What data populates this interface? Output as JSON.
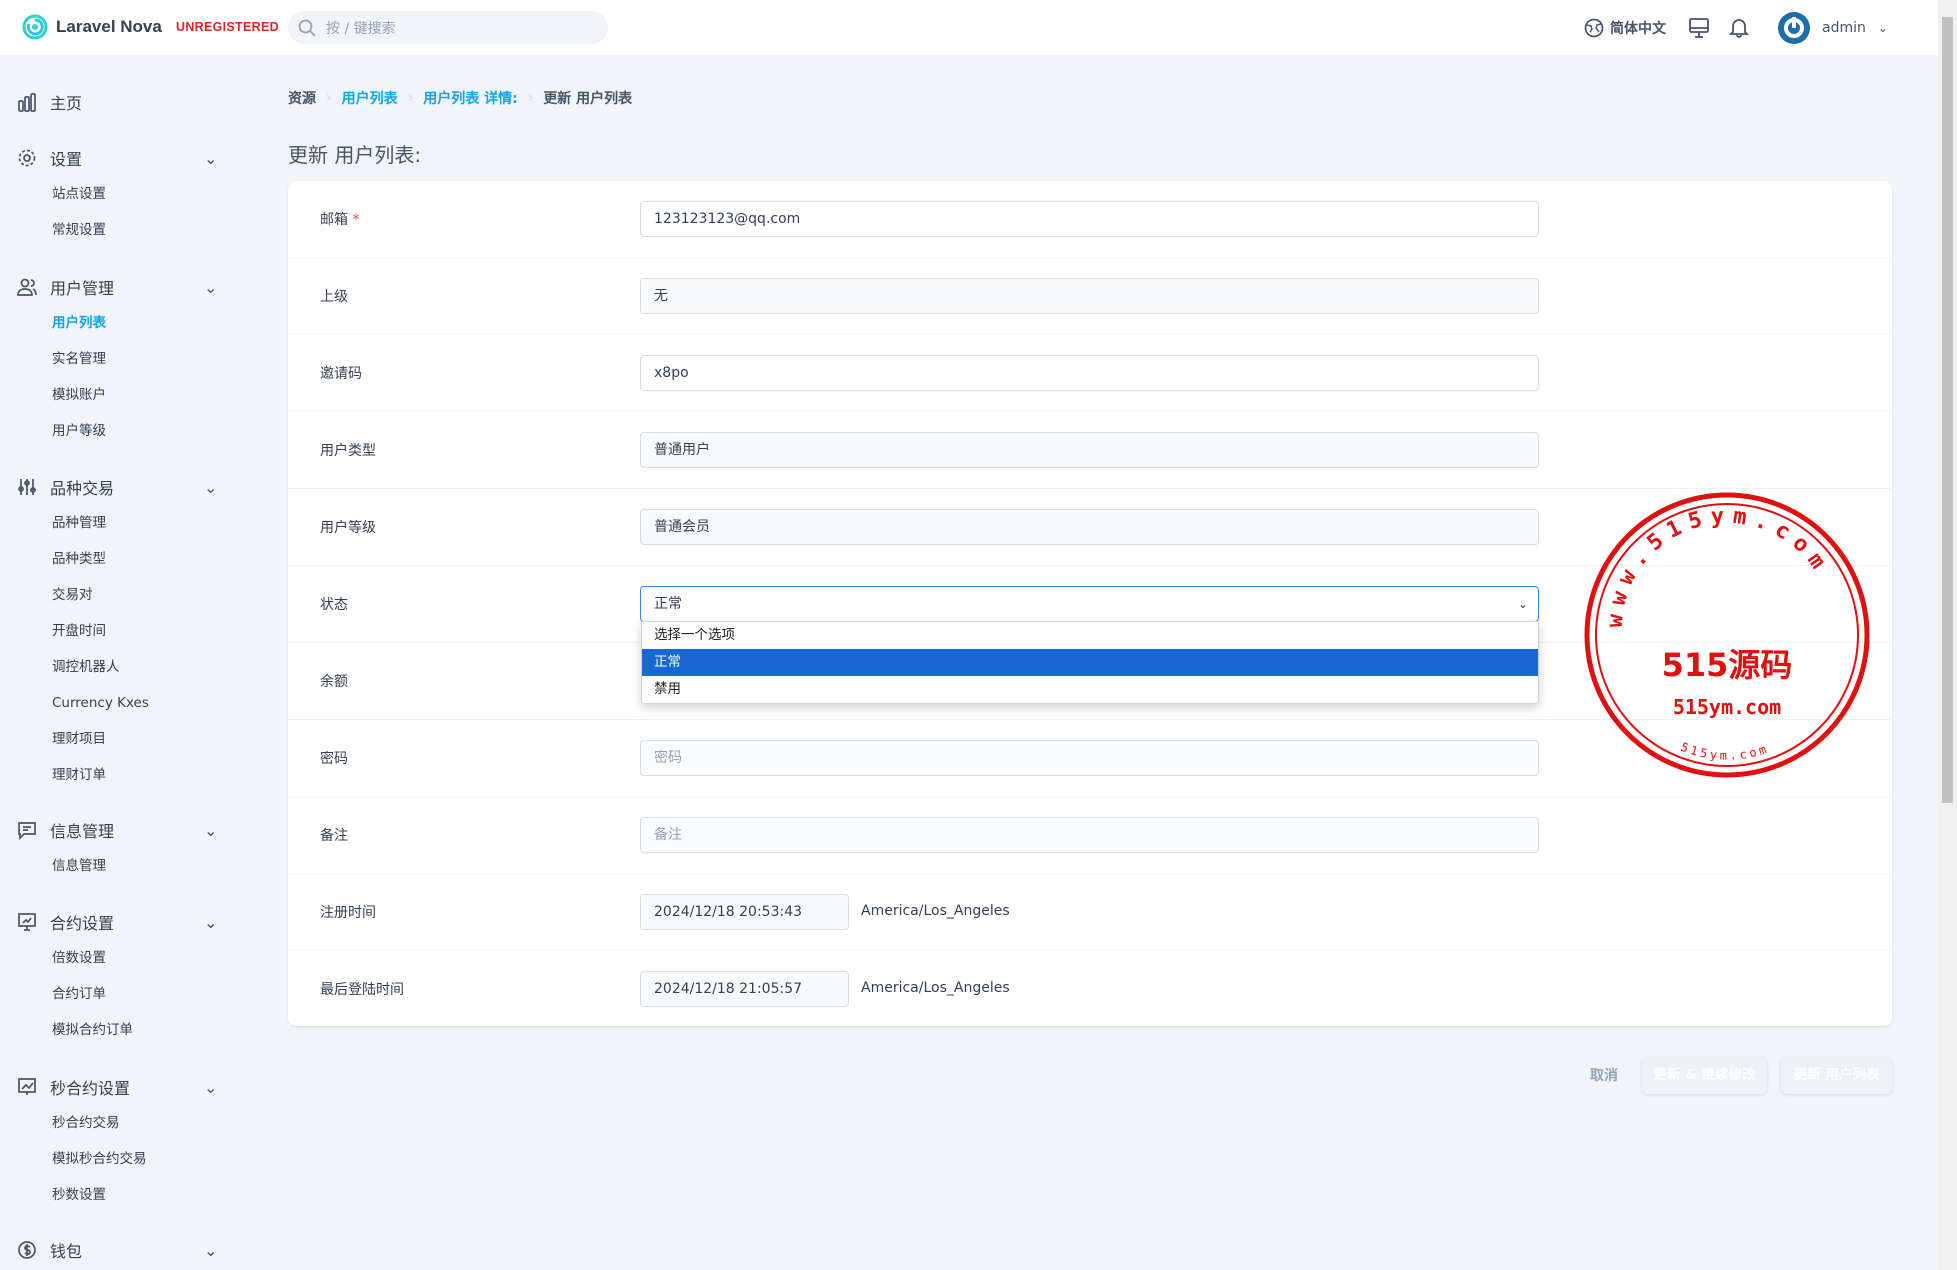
{
  "header": {
    "brand": "Laravel Nova",
    "badge": "UNREGISTERED",
    "search_placeholder": "按 / 键搜索",
    "language": "简体中文",
    "user": "admin"
  },
  "sidebar": [
    {
      "label": "主页",
      "icon": "chart-bar-icon",
      "items": []
    },
    {
      "label": "设置",
      "icon": "gear-icon",
      "items": [
        "站点设置",
        "常规设置"
      ]
    },
    {
      "label": "用户管理",
      "icon": "users-icon",
      "items": [
        "用户列表",
        "实名管理",
        "模拟账户",
        "用户等级"
      ],
      "active": "用户列表"
    },
    {
      "label": "品种交易",
      "icon": "sliders-icon",
      "items": [
        "品种管理",
        "品种类型",
        "交易对",
        "开盘时间",
        "调控机器人",
        "Currency Kxes",
        "理财项目",
        "理财订单"
      ]
    },
    {
      "label": "信息管理",
      "icon": "message-icon",
      "items": [
        "信息管理"
      ]
    },
    {
      "label": "合约设置",
      "icon": "presentation-icon",
      "items": [
        "倍数设置",
        "合约订单",
        "模拟合约订单"
      ]
    },
    {
      "label": "秒合约设置",
      "icon": "trend-chart-icon",
      "items": [
        "秒合约交易",
        "模拟秒合约交易",
        "秒数设置"
      ]
    },
    {
      "label": "钱包",
      "icon": "dollar-icon",
      "items": []
    }
  ],
  "breadcrumb": [
    "资源",
    "用户列表",
    "用户列表 详情:",
    "更新 用户列表"
  ],
  "page_title": "更新 用户列表:",
  "form": {
    "email": {
      "label": "邮箱",
      "required": "*",
      "value": "123123123@qq.com"
    },
    "parent": {
      "label": "上级",
      "value": "无"
    },
    "invite": {
      "label": "邀请码",
      "value": "x8po"
    },
    "user_type": {
      "label": "用户类型",
      "value": "普通用户"
    },
    "user_level": {
      "label": "用户等级",
      "value": "普通会员"
    },
    "status": {
      "label": "状态",
      "value": "正常",
      "options": [
        "选择一个选项",
        "正常",
        "禁用"
      ]
    },
    "balance": {
      "label": "余额"
    },
    "password": {
      "label": "密码",
      "placeholder": "密码"
    },
    "remark": {
      "label": "备注",
      "placeholder": "备注"
    },
    "registered": {
      "label": "注册时间",
      "value": "2024/12/18 20:53:43",
      "tz": "America/Los_Angeles"
    },
    "last_login": {
      "label": "最后登陆时间",
      "value": "2024/12/18 21:05:57",
      "tz": "America/Los_Angeles"
    }
  },
  "actions": {
    "cancel": "取消",
    "update_continue": "更新 & 继续修改",
    "update": "更新 用户列表"
  },
  "watermark": {
    "ring_top": "www.515ym.com",
    "center": "515源码",
    "bottom": "515ym.com",
    "ring_bottom": "515ym.com"
  },
  "colors": {
    "accent": "#0ea5e9",
    "highlight": "#1967d2",
    "stamp": "#e01010"
  }
}
